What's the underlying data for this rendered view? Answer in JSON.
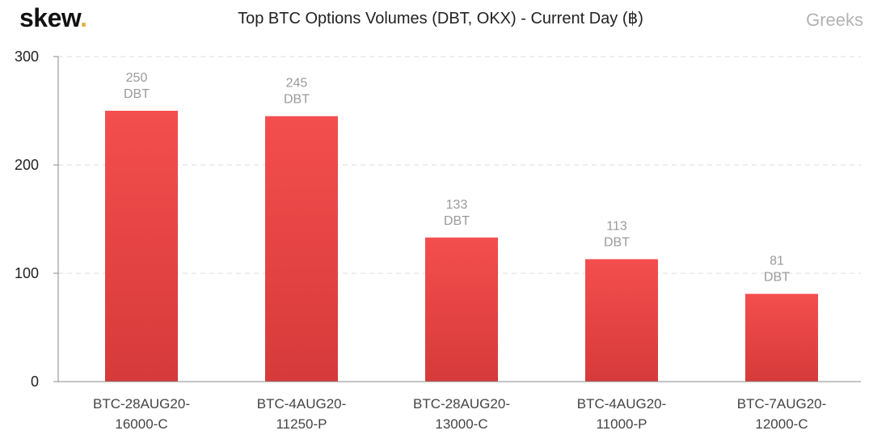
{
  "logo": {
    "text": "skew",
    "dot": "."
  },
  "watermark": "Greeks",
  "chart_data": {
    "type": "bar",
    "title": "Top BTC Options Volumes (DBT, OKX) - Current Day (฿)",
    "categories": [
      [
        "BTC-28AUG20-",
        "16000-C"
      ],
      [
        "BTC-4AUG20-",
        "11250-P"
      ],
      [
        "BTC-28AUG20-",
        "13000-C"
      ],
      [
        "BTC-4AUG20-",
        "11000-P"
      ],
      [
        "BTC-7AUG20-",
        "12000-C"
      ]
    ],
    "values": [
      250,
      245,
      133,
      113,
      81
    ],
    "data_label_suffix": "DBT",
    "ylim": [
      0,
      300
    ],
    "yticks": [
      0,
      100,
      200,
      300
    ],
    "grid": true,
    "colors": {
      "bar_top": "#f44e4e",
      "bar_bottom": "#d63a3a",
      "grid": "#dddddd"
    }
  }
}
